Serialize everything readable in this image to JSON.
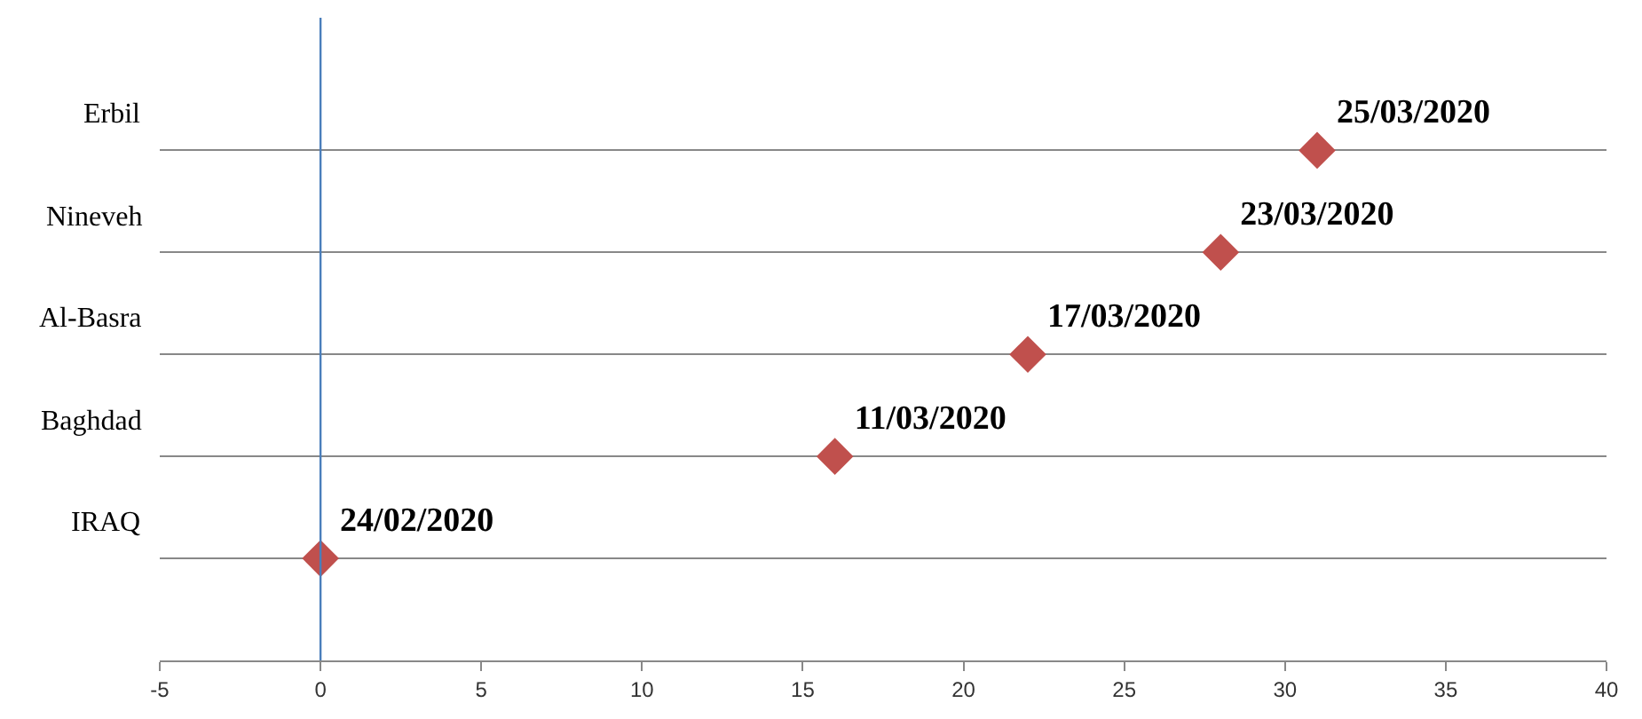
{
  "chart_data": {
    "type": "scatter",
    "orientation": "horizontal",
    "categories": [
      "Erbil",
      "Nineveh",
      "Al-Basra",
      "Baghdad",
      "IRAQ"
    ],
    "values": [
      31,
      28,
      22,
      16,
      0
    ],
    "value_labels": [
      "25/03/2020",
      "23/03/2020",
      "17/03/2020",
      "11/03/2020",
      "24/02/2020"
    ],
    "color": "#c0504d",
    "marker": "diamond",
    "xlim": [
      -5,
      40
    ],
    "xticks": [
      -5,
      0,
      5,
      10,
      15,
      20,
      25,
      30,
      35,
      40
    ],
    "grid": "y",
    "legend": false,
    "ref_lines": [
      {
        "axis": "x",
        "value": 0,
        "color": "#4a7ebb",
        "line_style": "solid"
      }
    ]
  }
}
